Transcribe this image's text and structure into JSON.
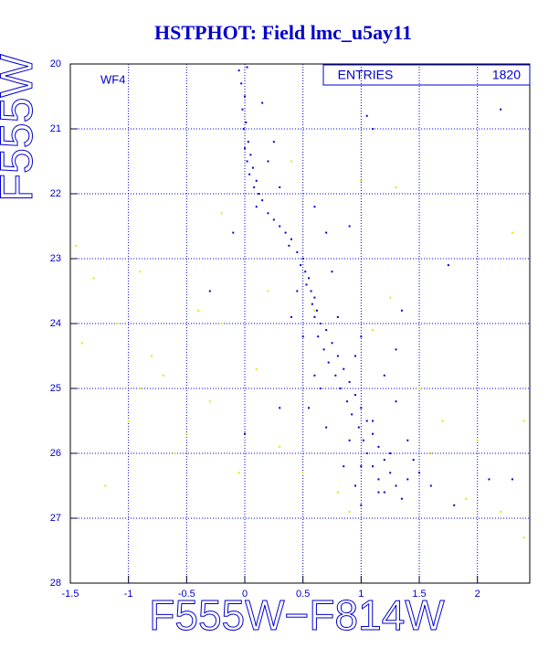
{
  "chart_data": {
    "type": "scatter",
    "title": "HSTPHOT: Field lmc_u5ay11",
    "x_label": "F555W−F814W",
    "y_label": "F555W",
    "annotation": "WF4",
    "stats": {
      "label": "ENTRIES",
      "value": 1820
    },
    "xlim": [
      -1.5,
      2.45
    ],
    "ylim": [
      28,
      20
    ],
    "xticks": [
      -1.5,
      -1,
      -0.5,
      0,
      0.5,
      1,
      1.5,
      2
    ],
    "yticks": [
      20,
      21,
      22,
      23,
      24,
      25,
      26,
      27,
      28
    ],
    "grid": true,
    "series": [
      {
        "color": "#0000cc",
        "x": [
          -0.05,
          0.02,
          -0.03,
          0.0,
          -0.02,
          0.01,
          -0.01,
          0.03,
          0.0,
          0.05,
          0.02,
          0.07,
          0.04,
          0.1,
          0.08,
          0.12,
          0.15,
          0.1,
          0.2,
          0.25,
          0.3,
          0.35,
          0.4,
          0.38,
          0.45,
          0.5,
          0.48,
          0.52,
          0.55,
          0.53,
          0.57,
          0.6,
          0.58,
          0.62,
          0.6,
          0.65,
          0.7,
          0.63,
          0.75,
          0.68,
          0.8,
          0.72,
          0.85,
          0.78,
          0.9,
          0.82,
          0.95,
          0.88,
          1.0,
          0.92,
          1.05,
          0.98,
          1.1,
          1.02,
          1.15,
          1.05,
          1.2,
          1.1,
          1.25,
          1.15,
          1.3,
          1.2,
          1.35,
          0.9,
          0.7,
          0.3,
          0.2,
          1.1,
          1.05,
          0.6,
          0.45,
          0.75,
          1.0,
          0.95,
          1.2,
          0.55,
          0.7,
          1.3,
          1.4,
          1.5,
          1.45,
          0.85,
          0.95,
          1.0,
          1.6,
          1.8,
          2.1,
          2.3,
          2.2,
          0.3,
          0.0,
          1.75,
          1.3,
          1.35,
          0.8,
          0.6,
          0.65,
          1.1,
          1.0,
          0.9,
          1.25,
          1.4,
          1.15,
          0.5,
          0.4,
          -0.1,
          -0.3,
          0.25,
          0.15
        ],
        "y": [
          20.1,
          20.05,
          20.3,
          20.5,
          20.7,
          20.9,
          21.0,
          21.2,
          21.3,
          21.4,
          21.5,
          21.6,
          21.7,
          21.8,
          21.9,
          22.0,
          22.1,
          22.2,
          22.3,
          22.4,
          22.5,
          22.6,
          22.7,
          22.8,
          22.9,
          23.0,
          23.1,
          23.2,
          23.3,
          23.4,
          23.5,
          23.6,
          23.7,
          23.8,
          23.9,
          24.0,
          24.1,
          24.2,
          24.3,
          24.4,
          24.5,
          24.6,
          24.7,
          24.8,
          24.9,
          25.0,
          25.1,
          25.2,
          25.3,
          25.4,
          25.5,
          25.6,
          25.7,
          25.8,
          25.9,
          26.0,
          26.1,
          26.2,
          26.3,
          26.4,
          26.5,
          26.6,
          26.7,
          22.5,
          22.6,
          21.9,
          21.5,
          21.0,
          20.8,
          22.2,
          23.5,
          23.2,
          24.2,
          24.5,
          24.8,
          25.3,
          25.6,
          25.2,
          25.8,
          26.3,
          26.1,
          26.2,
          26.5,
          26.8,
          26.5,
          26.8,
          26.4,
          26.4,
          20.7,
          25.3,
          25.7,
          23.1,
          24.4,
          23.8,
          23.9,
          24.8,
          25.0,
          25.5,
          26.2,
          25.8,
          26.0,
          26.4,
          26.6,
          24.2,
          23.9,
          22.6,
          23.5,
          21.2,
          20.6
        ]
      },
      {
        "color": "#e6e600",
        "x": [
          -1.45,
          -1.3,
          -1.4,
          -0.9,
          -0.8,
          -0.7,
          -0.5,
          -0.3,
          -0.2,
          -0.6,
          -1.0,
          -1.2,
          0.1,
          0.3,
          0.5,
          0.8,
          1.5,
          1.7,
          1.9,
          2.2,
          2.4,
          2.4,
          2.3,
          1.3,
          1.0,
          0.4,
          -0.2,
          0.2,
          0.6,
          1.1,
          1.25,
          -0.4,
          -0.05,
          0.9,
          1.6,
          2.0,
          -1.1,
          -0.9
        ],
        "y": [
          22.8,
          23.3,
          24.3,
          23.2,
          24.5,
          24.8,
          25.7,
          25.2,
          24.0,
          26.0,
          25.5,
          26.5,
          24.7,
          25.9,
          26.3,
          26.6,
          25.0,
          25.5,
          26.7,
          26.9,
          27.3,
          25.5,
          22.6,
          21.9,
          21.8,
          21.5,
          22.3,
          23.5,
          23.8,
          24.1,
          23.6,
          23.8,
          26.3,
          26.9,
          26.0,
          25.8,
          24.0,
          25.0
        ]
      }
    ]
  }
}
